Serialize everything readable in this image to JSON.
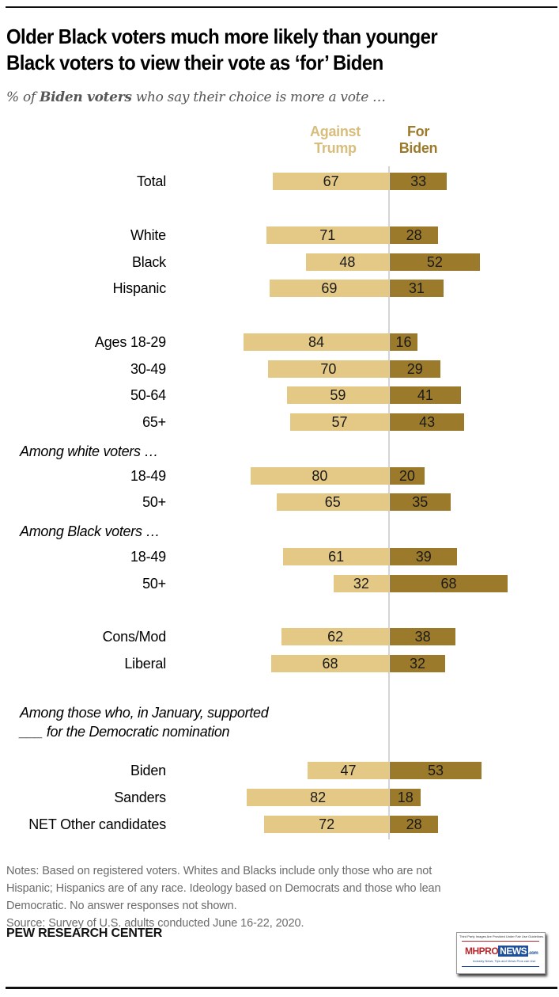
{
  "title_line1": "Older Black voters much more likely than younger",
  "title_line2": "Black voters to view their vote as ‘for’ Biden",
  "subtitle_prefix": "% of ",
  "subtitle_bold": "Biden voters",
  "subtitle_suffix": " who say their choice is more a vote …",
  "notes": [
    "Notes: Based on registered voters. Whites and Blacks include only those who are not",
    "Hispanic; Hispanics are of any race. Ideology based on Democrats and those who lean",
    "Democratic. No answer responses not shown.",
    "Source: Survey of U.S. adults conducted June 16-22, 2020."
  ],
  "brand": "PEW RESEARCH CENTER",
  "watermark": {
    "top_text": "Third Party Images Are Provided Under Fair Use Guidelines.",
    "mark_mh": "MHPRO",
    "mark_news": "NEWS",
    "mark_com": ".com",
    "tagline": "Industry News, Tips and Views Pros can Use"
  },
  "colors": {
    "against": "#E4C886",
    "for": "#9C7A2C",
    "against_header": "#D8BE7C",
    "axis": "#D4D4D4"
  },
  "chart_data": {
    "type": "bar",
    "orientation": "horizontal-diverging",
    "title": "Older Black voters much more likely than younger Black voters to view their vote as ‘for’ Biden",
    "subtitle": "% of Biden voters who say their choice is more a vote …",
    "xlabel": "",
    "ylabel": "",
    "xlim": [
      -100,
      100
    ],
    "grid": false,
    "legend": "top-center column headers",
    "series": [
      {
        "name": "Against Trump",
        "key": "against",
        "header_line1": "Against",
        "header_line2": "Trump",
        "color": "#E4C886"
      },
      {
        "name": "For Biden",
        "key": "for",
        "header_line1": "For",
        "header_line2": "Biden",
        "color": "#9C7A2C"
      }
    ],
    "group_labels": [
      {
        "id": "white",
        "text": "Among white voters …"
      },
      {
        "id": "black",
        "text": "Among Black voters …"
      },
      {
        "id": "january_1",
        "text": "Among those who, in January, supported"
      },
      {
        "id": "january_2",
        "text": "___ for the Democratic nomination"
      }
    ],
    "rows": [
      {
        "category": "Total",
        "against": 67,
        "for": 33
      },
      {
        "category": "White",
        "against": 71,
        "for": 28
      },
      {
        "category": "Black",
        "against": 48,
        "for": 52
      },
      {
        "category": "Hispanic",
        "against": 69,
        "for": 31
      },
      {
        "category": "Ages 18-29",
        "against": 84,
        "for": 16
      },
      {
        "category": "30-49",
        "against": 70,
        "for": 29
      },
      {
        "category": "50-64",
        "against": 59,
        "for": 41
      },
      {
        "category": "65+",
        "against": 57,
        "for": 43
      },
      {
        "category": "18-49",
        "group": "Among white voters",
        "against": 80,
        "for": 20
      },
      {
        "category": "50+",
        "group": "Among white voters",
        "against": 65,
        "for": 35
      },
      {
        "category": "18-49",
        "group": "Among Black voters",
        "against": 61,
        "for": 39
      },
      {
        "category": "50+",
        "group": "Among Black voters",
        "against": 32,
        "for": 68
      },
      {
        "category": "Cons/Mod",
        "against": 62,
        "for": 38
      },
      {
        "category": "Liberal",
        "against": 68,
        "for": 32
      },
      {
        "category": "Biden",
        "group": "January supporters",
        "against": 47,
        "for": 53
      },
      {
        "category": "Sanders",
        "group": "January supporters",
        "against": 82,
        "for": 18
      },
      {
        "category": "NET Other candidates",
        "group": "January supporters",
        "against": 72,
        "for": 28
      }
    ]
  }
}
